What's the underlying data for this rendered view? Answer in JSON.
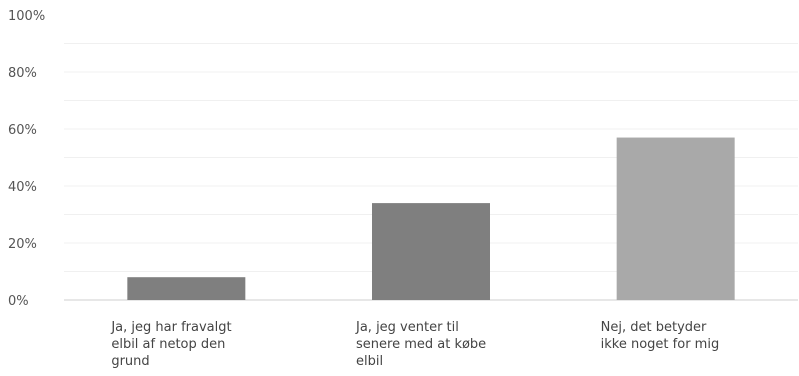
{
  "chart_data": {
    "type": "bar",
    "categories": [
      [
        "Ja, jeg har fravalgt",
        "elbil af netop den",
        "grund"
      ],
      [
        "Ja, jeg venter til",
        "senere med at købe",
        "elbil"
      ],
      [
        "Nej, det betyder",
        "ikke noget for mig"
      ]
    ],
    "values": [
      8,
      34,
      57
    ],
    "bar_colors": [
      "#7f7f7f",
      "#7f7f7f",
      "#a9a9a9"
    ],
    "ylim": [
      0,
      100
    ],
    "yticks": [
      "0%",
      "20%",
      "40%",
      "60%",
      "80%",
      "100%"
    ],
    "grid": true,
    "title": "",
    "xlabel": "",
    "ylabel": ""
  }
}
